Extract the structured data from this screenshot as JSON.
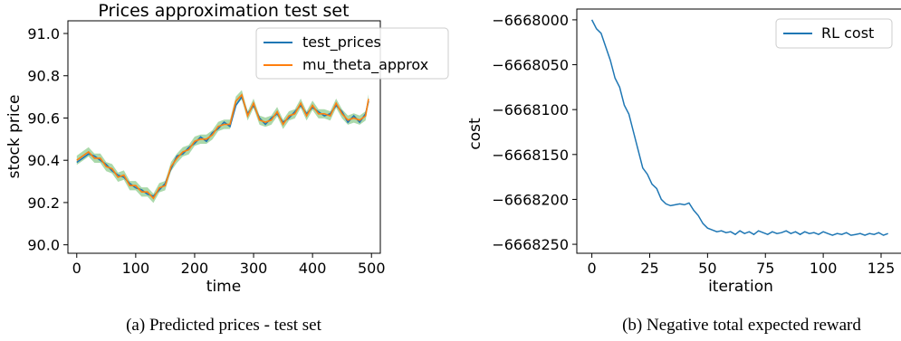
{
  "chart_data": [
    {
      "type": "line",
      "title": "Prices approximation test set",
      "xlabel": "time",
      "ylabel": "stock price",
      "caption": "(a) Predicted prices - test set",
      "xlim": [
        -15,
        515
      ],
      "ylim": [
        89.96,
        91.06
      ],
      "xticks": [
        0,
        100,
        200,
        300,
        400,
        500
      ],
      "xtick_labels": [
        "0",
        "100",
        "200",
        "300",
        "400",
        "500"
      ],
      "yticks": [
        90.0,
        90.2,
        90.4,
        90.6,
        90.8,
        91.0
      ],
      "ytick_labels": [
        "90.0",
        "90.2",
        "90.4",
        "90.6",
        "90.8",
        "91.0"
      ],
      "legend_position": "top-right",
      "band_color": "#2ca02c",
      "series": [
        {
          "name": "test_prices",
          "color": "#1f77b4",
          "x": [
            0,
            10,
            20,
            30,
            40,
            50,
            60,
            70,
            80,
            90,
            100,
            110,
            120,
            130,
            140,
            150,
            160,
            170,
            180,
            190,
            200,
            210,
            220,
            230,
            240,
            250,
            260,
            270,
            280,
            290,
            300,
            310,
            320,
            330,
            340,
            350,
            360,
            370,
            380,
            390,
            400,
            410,
            420,
            430,
            440,
            450,
            460,
            470,
            480,
            490,
            495
          ],
          "y": [
            90.39,
            90.41,
            90.43,
            90.42,
            90.4,
            90.38,
            90.35,
            90.33,
            90.32,
            90.29,
            90.27,
            90.26,
            90.24,
            90.23,
            90.26,
            90.29,
            90.36,
            90.42,
            90.43,
            90.46,
            90.48,
            90.51,
            90.49,
            90.53,
            90.55,
            90.58,
            90.56,
            90.66,
            90.7,
            90.62,
            90.66,
            90.6,
            90.57,
            90.6,
            90.62,
            90.58,
            90.6,
            90.63,
            90.66,
            90.62,
            90.65,
            90.63,
            90.61,
            90.62,
            90.66,
            90.63,
            90.58,
            90.61,
            90.58,
            90.62,
            90.68
          ]
        },
        {
          "name": "mu_theta_approx",
          "color": "#ff7f0e",
          "x": [
            0,
            10,
            20,
            30,
            40,
            50,
            60,
            70,
            80,
            90,
            100,
            110,
            120,
            130,
            140,
            150,
            160,
            170,
            180,
            190,
            200,
            210,
            220,
            230,
            240,
            250,
            260,
            270,
            280,
            290,
            300,
            310,
            320,
            330,
            340,
            350,
            360,
            370,
            380,
            390,
            400,
            410,
            420,
            430,
            440,
            450,
            460,
            470,
            480,
            490,
            495
          ],
          "y": [
            90.4,
            90.42,
            90.44,
            90.41,
            90.41,
            90.37,
            90.36,
            90.32,
            90.33,
            90.28,
            90.28,
            90.25,
            90.25,
            90.22,
            90.27,
            90.28,
            90.37,
            90.41,
            90.44,
            90.45,
            90.49,
            90.5,
            90.5,
            90.52,
            90.56,
            90.57,
            90.57,
            90.68,
            90.71,
            90.61,
            90.67,
            90.59,
            90.58,
            90.59,
            90.63,
            90.57,
            90.61,
            90.62,
            90.67,
            90.61,
            90.66,
            90.62,
            90.62,
            90.61,
            90.67,
            90.62,
            90.59,
            90.6,
            90.59,
            90.61,
            90.69
          ]
        }
      ]
    },
    {
      "type": "line",
      "title": "",
      "xlabel": "iteration",
      "ylabel": "cost",
      "caption": "(b) Negative total expected reward",
      "xlim": [
        -6.5,
        134
      ],
      "ylim": [
        -6668260,
        -6667988
      ],
      "xticks": [
        0,
        25,
        50,
        75,
        100,
        125
      ],
      "xtick_labels": [
        "0",
        "25",
        "50",
        "75",
        "100",
        "125"
      ],
      "yticks": [
        -6668000,
        -6668050,
        -6668100,
        -6668150,
        -6668200,
        -6668250
      ],
      "ytick_labels": [
        "−6668000",
        "−6668050",
        "−6668100",
        "−6668150",
        "−6668200",
        "−6668250"
      ],
      "legend_position": "top-right",
      "series": [
        {
          "name": "RL cost",
          "color": "#1f77b4",
          "x": [
            0,
            2,
            4,
            6,
            8,
            10,
            12,
            14,
            16,
            18,
            20,
            22,
            24,
            26,
            28,
            30,
            32,
            34,
            36,
            38,
            40,
            42,
            44,
            46,
            48,
            50,
            52,
            54,
            56,
            58,
            60,
            62,
            64,
            66,
            68,
            70,
            72,
            74,
            76,
            78,
            80,
            82,
            84,
            86,
            88,
            90,
            92,
            94,
            96,
            98,
            100,
            102,
            104,
            106,
            108,
            110,
            112,
            114,
            116,
            118,
            120,
            122,
            124,
            126,
            128
          ],
          "y": [
            -6668000,
            -6668010,
            -6668015,
            -6668030,
            -6668045,
            -6668065,
            -6668075,
            -6668095,
            -6668105,
            -6668125,
            -6668145,
            -6668165,
            -6668172,
            -6668183,
            -6668188,
            -6668200,
            -6668205,
            -6668207,
            -6668206,
            -6668205,
            -6668206,
            -6668204,
            -6668212,
            -6668218,
            -6668227,
            -6668232,
            -6668234,
            -6668236,
            -6668235,
            -6668237,
            -6668236,
            -6668239,
            -6668235,
            -6668238,
            -6668236,
            -6668239,
            -6668235,
            -6668237,
            -6668239,
            -6668236,
            -6668238,
            -6668237,
            -6668235,
            -6668238,
            -6668236,
            -6668239,
            -6668236,
            -6668238,
            -6668237,
            -6668239,
            -6668236,
            -6668238,
            -6668240,
            -6668238,
            -6668239,
            -6668237,
            -6668240,
            -6668239,
            -6668238,
            -6668240,
            -6668238,
            -6668239,
            -6668237,
            -6668240,
            -6668238
          ]
        }
      ]
    }
  ]
}
